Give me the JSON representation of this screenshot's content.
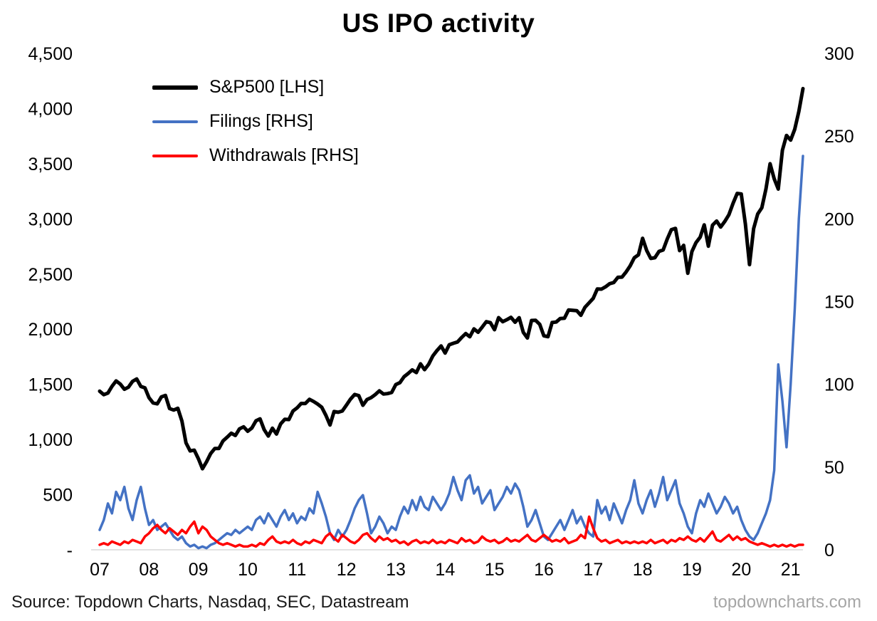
{
  "title": "US IPO activity",
  "legend": [
    {
      "label": "S&P500 [LHS]",
      "color": "#000000"
    },
    {
      "label": "Filings [RHS]",
      "color": "#4472C4"
    },
    {
      "label": "Withdrawals [RHS]",
      "color": "#FF0000"
    }
  ],
  "footer": {
    "source": "Source: Topdown Charts, Nasdaq, SEC, Datastream",
    "watermark": "topdowncharts.com"
  },
  "chart_data": {
    "type": "line",
    "title": "US IPO activity",
    "frequency": "monthly",
    "x_start": "2007-01",
    "x_end": "2021-04",
    "grid": false,
    "legend_position": "top-left-inside",
    "x_tick_labels": [
      "07",
      "08",
      "09",
      "10",
      "11",
      "12",
      "13",
      "14",
      "15",
      "16",
      "17",
      "18",
      "19",
      "20",
      "21"
    ],
    "left_axis": {
      "min": 0,
      "max": 4500,
      "step": 500,
      "tick_labels": [
        "4,500",
        "4,000",
        "3,500",
        "3,000",
        "2,500",
        "2,000",
        "1,500",
        "1,000",
        "500",
        "-"
      ]
    },
    "right_axis": {
      "min": 0,
      "max": 300,
      "step": 50,
      "tick_labels": [
        "300",
        "250",
        "200",
        "150",
        "100",
        "50",
        "0"
      ]
    },
    "series": [
      {
        "name": "S&P500 [LHS]",
        "axis": "left",
        "color": "#000000",
        "width": 5,
        "values": [
          1438,
          1406,
          1421,
          1482,
          1531,
          1503,
          1455,
          1474,
          1527,
          1549,
          1481,
          1468,
          1379,
          1331,
          1323,
          1386,
          1400,
          1280,
          1267,
          1283,
          1166,
          969,
          896,
          903,
          826,
          735,
          798,
          873,
          919,
          919,
          987,
          1021,
          1057,
          1036,
          1096,
          1115,
          1074,
          1104,
          1169,
          1187,
          1089,
          1031,
          1102,
          1049,
          1141,
          1183,
          1181,
          1258,
          1286,
          1327,
          1326,
          1364,
          1345,
          1321,
          1292,
          1219,
          1131,
          1253,
          1247,
          1258,
          1312,
          1366,
          1408,
          1398,
          1310,
          1362,
          1379,
          1407,
          1441,
          1412,
          1416,
          1426,
          1498,
          1515,
          1569,
          1598,
          1631,
          1606,
          1686,
          1633,
          1682,
          1757,
          1806,
          1848,
          1783,
          1859,
          1872,
          1884,
          1924,
          1960,
          1931,
          2003,
          1972,
          2018,
          2068,
          2059,
          1995,
          2105,
          2068,
          2086,
          2107,
          2063,
          2104,
          1972,
          1920,
          2079,
          2080,
          2044,
          1940,
          1932,
          2060,
          2065,
          2097,
          2099,
          2174,
          2171,
          2168,
          2126,
          2199,
          2239,
          2279,
          2364,
          2363,
          2384,
          2412,
          2423,
          2470,
          2472,
          2519,
          2575,
          2648,
          2674,
          2824,
          2714,
          2641,
          2648,
          2705,
          2718,
          2816,
          2902,
          2914,
          2712,
          2760,
          2507,
          2704,
          2785,
          2834,
          2946,
          2752,
          2942,
          2980,
          2926,
          2977,
          3038,
          3141,
          3231,
          3226,
          2954,
          2585,
          2912,
          3044,
          3100,
          3271,
          3500,
          3363,
          3270,
          3622,
          3756,
          3714,
          3811,
          3973,
          4181
        ]
      },
      {
        "name": "Filings [RHS]",
        "axis": "right",
        "color": "#4472C4",
        "width": 3.5,
        "values": [
          12,
          18,
          28,
          22,
          35,
          30,
          38,
          25,
          18,
          30,
          38,
          25,
          15,
          18,
          12,
          14,
          16,
          12,
          8,
          6,
          8,
          4,
          2,
          3,
          1,
          2,
          1,
          3,
          4,
          6,
          8,
          10,
          9,
          12,
          10,
          12,
          14,
          12,
          18,
          20,
          16,
          22,
          18,
          14,
          20,
          24,
          18,
          22,
          16,
          20,
          18,
          25,
          22,
          35,
          28,
          20,
          10,
          6,
          12,
          8,
          12,
          18,
          25,
          30,
          33,
          22,
          10,
          14,
          20,
          16,
          10,
          14,
          12,
          20,
          26,
          22,
          30,
          24,
          32,
          26,
          24,
          32,
          28,
          24,
          28,
          34,
          44,
          36,
          30,
          42,
          45,
          34,
          38,
          28,
          32,
          36,
          24,
          28,
          32,
          38,
          34,
          40,
          36,
          26,
          14,
          18,
          24,
          16,
          8,
          6,
          10,
          14,
          18,
          12,
          18,
          24,
          16,
          20,
          14,
          10,
          8,
          30,
          22,
          26,
          18,
          28,
          22,
          16,
          24,
          30,
          42,
          28,
          22,
          30,
          36,
          26,
          34,
          44,
          30,
          36,
          42,
          28,
          22,
          14,
          10,
          22,
          30,
          26,
          34,
          28,
          22,
          26,
          32,
          28,
          22,
          26,
          18,
          12,
          8,
          6,
          10,
          16,
          22,
          30,
          48,
          112,
          90,
          62,
          100,
          145,
          200,
          238
        ]
      },
      {
        "name": "Withdrawals [RHS]",
        "axis": "right",
        "color": "#FF0000",
        "width": 3.5,
        "values": [
          3,
          4,
          3,
          5,
          4,
          3,
          5,
          4,
          6,
          5,
          4,
          8,
          10,
          13,
          15,
          12,
          10,
          13,
          11,
          9,
          12,
          10,
          14,
          17,
          10,
          14,
          12,
          8,
          6,
          4,
          3,
          4,
          3,
          2,
          3,
          2,
          2,
          3,
          2,
          4,
          3,
          6,
          8,
          5,
          4,
          5,
          4,
          6,
          4,
          3,
          5,
          4,
          6,
          5,
          4,
          8,
          10,
          7,
          5,
          9,
          7,
          5,
          4,
          6,
          9,
          10,
          7,
          5,
          8,
          6,
          7,
          5,
          6,
          4,
          5,
          3,
          5,
          6,
          4,
          5,
          4,
          6,
          4,
          5,
          4,
          6,
          5,
          4,
          7,
          5,
          6,
          4,
          5,
          8,
          6,
          5,
          6,
          4,
          5,
          7,
          5,
          6,
          5,
          7,
          9,
          6,
          5,
          7,
          9,
          7,
          5,
          6,
          5,
          7,
          4,
          5,
          6,
          9,
          7,
          20,
          13,
          7,
          5,
          6,
          4,
          5,
          6,
          4,
          5,
          4,
          5,
          4,
          5,
          4,
          6,
          4,
          5,
          6,
          4,
          6,
          5,
          7,
          6,
          8,
          6,
          5,
          7,
          5,
          8,
          11,
          6,
          5,
          7,
          9,
          6,
          8,
          6,
          7,
          5,
          4,
          3,
          4,
          3,
          2,
          3,
          2,
          3,
          2,
          3,
          2,
          3,
          3
        ]
      }
    ]
  }
}
